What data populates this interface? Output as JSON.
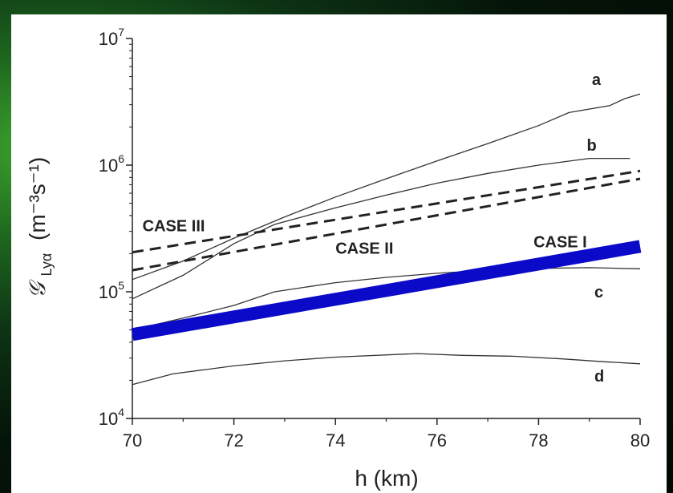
{
  "colors": {
    "frame": "#0d3314",
    "panel": "#ffffff",
    "thin_line": "#333333",
    "dashed_line": "#222222",
    "case_i": "#0a0ac8"
  },
  "chart_data": {
    "type": "line",
    "xlabel": "h (km)",
    "ylabel_symbol": "𝒢",
    "ylabel_sub": "Lyα",
    "ylabel_units": "(m⁻³s⁻¹)",
    "x_ticks": [
      "70",
      "72",
      "74",
      "76",
      "78",
      "80"
    ],
    "y_ticks": [
      {
        "value": 10000,
        "base": "10",
        "exp": "4"
      },
      {
        "value": 100000,
        "base": "10",
        "exp": "5"
      },
      {
        "value": 1000000,
        "base": "10",
        "exp": "6"
      },
      {
        "value": 10000000,
        "base": "10",
        "exp": "7"
      }
    ],
    "xlim": [
      70,
      80
    ],
    "ylim": [
      10000,
      10000000
    ],
    "yscale": "log",
    "grid": false,
    "series": [
      {
        "name": "a",
        "style": "thin",
        "x": [
          70,
          71,
          72,
          73,
          74,
          75,
          76,
          77,
          78,
          78.6,
          79.4,
          79.7,
          80
        ],
        "y": [
          125000,
          175000,
          265000,
          390000,
          560000,
          780000,
          1080000,
          1480000,
          2050000,
          2600000,
          2950000,
          3350000,
          3650000
        ]
      },
      {
        "name": "b",
        "style": "thin",
        "x": [
          70,
          71,
          72,
          72.8,
          74,
          75,
          76,
          77,
          78,
          79,
          79.8
        ],
        "y": [
          88000,
          135000,
          240000,
          340000,
          460000,
          580000,
          720000,
          860000,
          1000000,
          1130000,
          1130000
        ]
      },
      {
        "name": "c",
        "style": "thin",
        "x": [
          70,
          71,
          72,
          72.8,
          74,
          75,
          76,
          77,
          78,
          79,
          80
        ],
        "y": [
          50000,
          62000,
          78000,
          100000,
          118000,
          130000,
          140000,
          148000,
          153000,
          155000,
          152000
        ]
      },
      {
        "name": "d",
        "style": "thin",
        "x": [
          70,
          70.8,
          72,
          73,
          74,
          75.6,
          76.5,
          77.5,
          78.5,
          79.3,
          80
        ],
        "y": [
          18500,
          22500,
          26000,
          28500,
          30500,
          32500,
          31500,
          31000,
          29500,
          28000,
          27000
        ]
      },
      {
        "name": "CASE III",
        "style": "dashed",
        "x": [
          70,
          80
        ],
        "y": [
          205000,
          900000
        ]
      },
      {
        "name": "CASE II",
        "style": "dashed",
        "x": [
          70,
          80
        ],
        "y": [
          148000,
          780000
        ]
      },
      {
        "name": "CASE I",
        "style": "thick",
        "x": [
          70,
          80
        ],
        "y": [
          46000,
          228000
        ]
      }
    ],
    "series_labels": [
      {
        "text": "a",
        "x": 79.05,
        "y": 4300000
      },
      {
        "text": "b",
        "x": 78.95,
        "y": 1300000
      },
      {
        "text": "CASE III",
        "x": 70.2,
        "y": 300000
      },
      {
        "text": "CASE II",
        "x": 74.0,
        "y": 200000
      },
      {
        "text": "CASE I",
        "x": 77.9,
        "y": 225000
      },
      {
        "text": "c",
        "x": 79.1,
        "y": 90000
      },
      {
        "text": "d",
        "x": 79.1,
        "y": 19500
      }
    ]
  }
}
